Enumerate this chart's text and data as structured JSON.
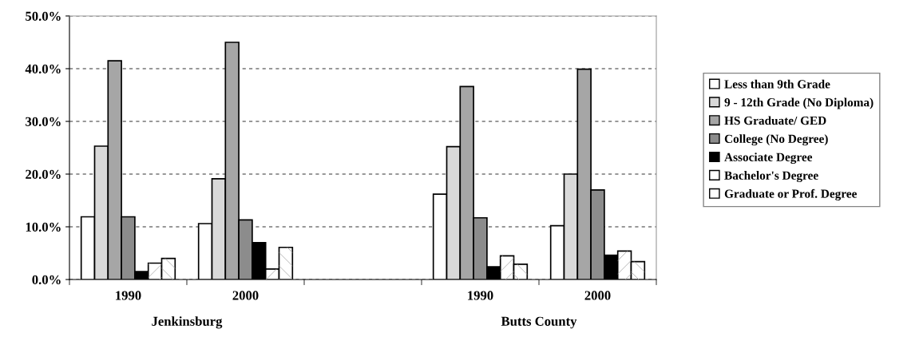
{
  "chart_data": {
    "type": "bar",
    "categories": [
      "1990",
      "2000",
      null,
      "1990",
      "2000"
    ],
    "series": [
      {
        "name": "Less than 9th Grade",
        "color": "#ffffff",
        "values": [
          11.9,
          10.6,
          null,
          16.2,
          10.2
        ]
      },
      {
        "name": "9 - 12th Grade (No Diploma)",
        "color": "#d9d9d9",
        "values": [
          25.3,
          19.1,
          null,
          25.2,
          20.0
        ]
      },
      {
        "name": "HS Graduate/ GED",
        "color": "#a6a6a6",
        "values": [
          41.5,
          45.0,
          null,
          36.6,
          39.9
        ]
      },
      {
        "name": "College (No Degree)",
        "color": "#8c8c8c",
        "values": [
          11.9,
          11.3,
          null,
          11.7,
          17.0
        ]
      },
      {
        "name": "Associate Degree",
        "color": "#000000",
        "values": [
          1.5,
          7.0,
          null,
          2.4,
          4.6
        ]
      },
      {
        "name": "Bachelor's Degree",
        "color": "#ffffff",
        "values": [
          3.1,
          2.0,
          null,
          4.5,
          5.4
        ]
      },
      {
        "name": "Graduate or Prof. Degree",
        "color": "#ffffff",
        "values": [
          4.0,
          6.1,
          null,
          2.9,
          3.4
        ]
      }
    ],
    "annotations": [
      "Jenkinsburg",
      "Butts County"
    ],
    "ylim": [
      0,
      50
    ],
    "yticks": [
      {
        "value": 0,
        "label": "0.0%"
      },
      {
        "value": 10,
        "label": "10.0%"
      },
      {
        "value": 20,
        "label": "20.0%"
      },
      {
        "value": 30,
        "label": "30.0%"
      },
      {
        "value": 40,
        "label": "40.0%"
      },
      {
        "value": 50,
        "label": "50.0%"
      }
    ],
    "grid": "y",
    "legend": "right"
  }
}
